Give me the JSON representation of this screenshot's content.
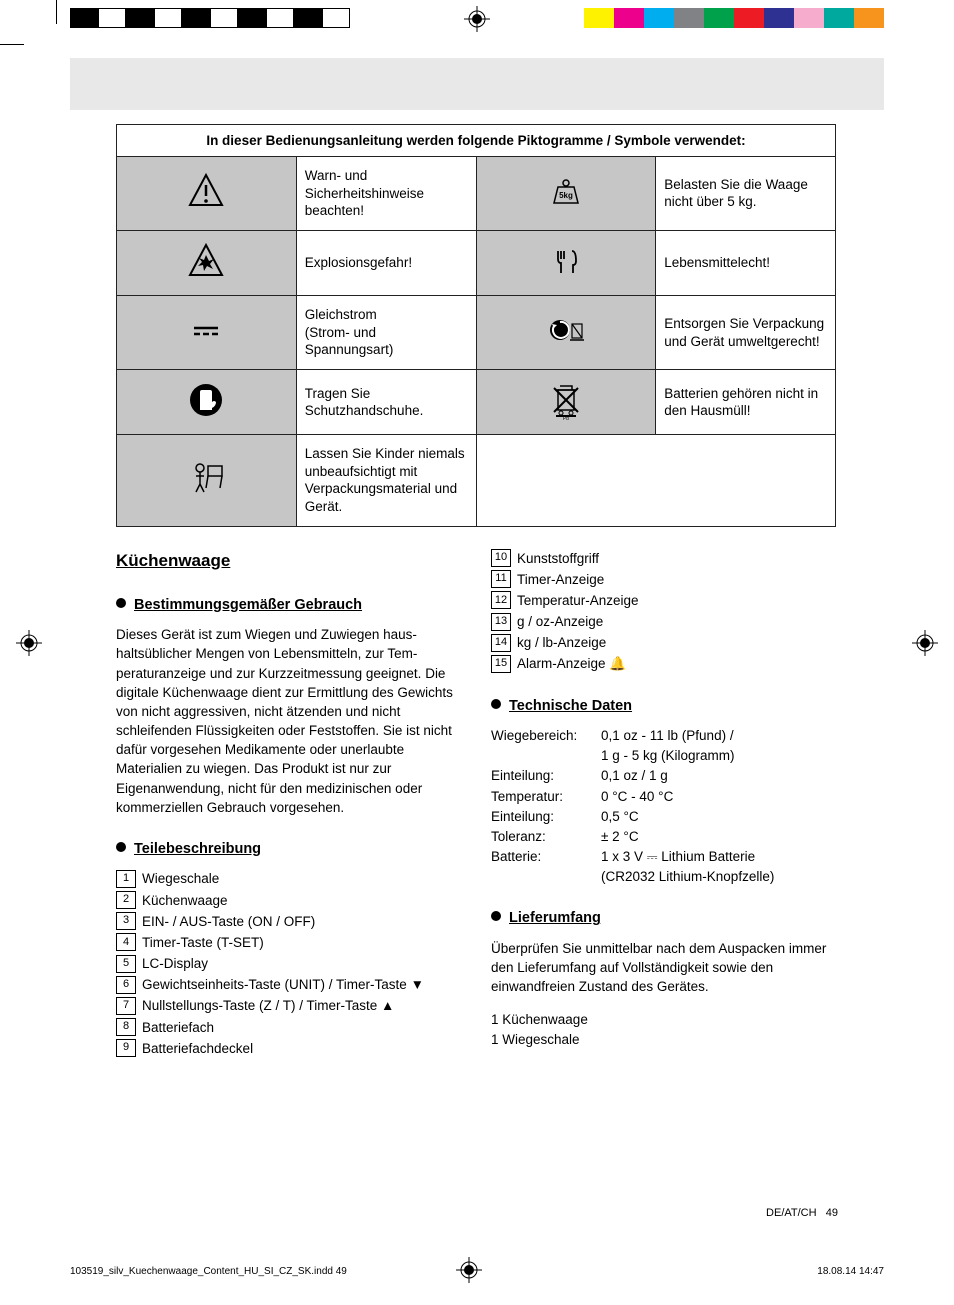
{
  "colorbar": {
    "left": [
      "#000000",
      "#ffffff",
      "#000000",
      "#ffffff",
      "#000000",
      "#ffffff",
      "#000000",
      "#ffffff",
      "#000000",
      "#ffffff"
    ],
    "right": [
      "#fff200",
      "#ec008c",
      "#00aeef",
      "#808285",
      "#00a14b",
      "#ed1c24",
      "#2e3192",
      "#f6adcd",
      "#00a99d",
      "#f7941d"
    ]
  },
  "piktogramm": {
    "header": "In dieser Bedienungsanleitung werden folgende Piktogramme / Symbole verwendet:",
    "rows": [
      {
        "l_icon": "warning",
        "l_text": "Warn- und Sicherheitshinweise beachten!",
        "r_icon": "weight5kg",
        "r_text": "Belasten Sie die Waage nicht über 5 kg."
      },
      {
        "l_icon": "explosion",
        "l_text": "Explosionsgefahr!",
        "r_icon": "food",
        "r_text": "Lebensmittelecht!"
      },
      {
        "l_icon": "dc",
        "l_text": "Gleichstrom\n(Strom- und Spannungsart)",
        "r_icon": "recycle",
        "r_text": "Entsorgen Sie Verpackung und Gerät umweltgerecht!"
      },
      {
        "l_icon": "gloves",
        "l_text": "Tragen Sie Schutzhandschuhe.",
        "r_icon": "bin",
        "r_text": "Batterien gehören nicht in den Hausmüll!"
      },
      {
        "l_icon": "child",
        "l_text": "Lassen Sie Kinder niemals unbeauf­sichtigt mit Verpackungsmaterial und Gerät.",
        "r_icon": "",
        "r_text": ""
      }
    ]
  },
  "left_col": {
    "title": "Küchenwaage",
    "sect1_title": "Bestimmungsgemäßer Gebrauch",
    "sect1_body": "Dieses Gerät ist zum Wiegen und Zuwiegen haus­haltsüblicher Mengen von Lebensmitteln, zur Tem­peraturanzeige und zur Kurzzeitmessung geeignet. Die digitale Küchenwaage dient zur Ermittlung des Gewichts von nicht aggressiven, nicht ätzenden und nicht schleifenden Flüssigkeiten oder Feststoffen. Sie ist nicht dafür vorgesehen Medikamente oder unerlaubte Materialien zu wiegen. Das Produkt ist nur zur Eigenanwendung, nicht für den medizinischen oder kommerziellen Gebrauch vorgesehen.",
    "sect2_title": "Teilebeschreibung",
    "parts": [
      {
        "n": "1",
        "t": "Wiegeschale"
      },
      {
        "n": "2",
        "t": "Küchenwaage"
      },
      {
        "n": "3",
        "t": "EIN- / AUS-Taste (ON / OFF)"
      },
      {
        "n": "4",
        "t": "Timer-Taste (T-SET)"
      },
      {
        "n": "5",
        "t": "LC-Display"
      },
      {
        "n": "6",
        "t": "Gewichtseinheits-Taste (UNIT) / Timer-Taste ▼"
      },
      {
        "n": "7",
        "t": "Nullstellungs-Taste (Z / T) / Timer-Taste ▲"
      },
      {
        "n": "8",
        "t": "Batteriefach"
      },
      {
        "n": "9",
        "t": "Batteriefachdeckel"
      }
    ]
  },
  "right_col": {
    "parts_cont": [
      {
        "n": "10",
        "t": "Kunststoffgriff"
      },
      {
        "n": "11",
        "t": "Timer-Anzeige"
      },
      {
        "n": "12",
        "t": "Temperatur-Anzeige"
      },
      {
        "n": "13",
        "t": "g / oz-Anzeige"
      },
      {
        "n": "14",
        "t": "kg / lb-Anzeige"
      },
      {
        "n": "15",
        "t": "Alarm-Anzeige 🔔"
      }
    ],
    "tech_title": "Technische Daten",
    "tech": [
      {
        "l": "Wiegebereich:",
        "v": "0,1 oz - 11 lb (Pfund) /"
      },
      {
        "l": "",
        "v": "1 g - 5 kg (Kilogramm)"
      },
      {
        "l": "Einteilung:",
        "v": "0,1 oz / 1 g"
      },
      {
        "l": "Temperatur:",
        "v": "0 °C - 40 °C"
      },
      {
        "l": "Einteilung:",
        "v": "0,5 °C"
      },
      {
        "l": "Toleranz:",
        "v": "± 2 °C"
      },
      {
        "l": "Batterie:",
        "v": "1 x 3 V ⎓ Lithium Batterie"
      },
      {
        "l": "",
        "v": "(CR2032 Lithium-Knopfzelle)"
      }
    ],
    "scope_title": "Lieferumfang",
    "scope_body": "Überprüfen Sie unmittelbar nach dem Auspacken immer den Lieferumfang auf Vollständigkeit sowie den einwandfreien Zustand des Gerätes.",
    "scope_items": [
      "1 Küchenwaage",
      "1 Wiegeschale"
    ]
  },
  "footer": {
    "region": "DE/AT/CH",
    "page": "49"
  },
  "imprint": {
    "file": "103519_silv_Kuechenwaage_Content_HU_SI_CZ_SK.indd   49",
    "date": "18.08.14   14:47"
  }
}
